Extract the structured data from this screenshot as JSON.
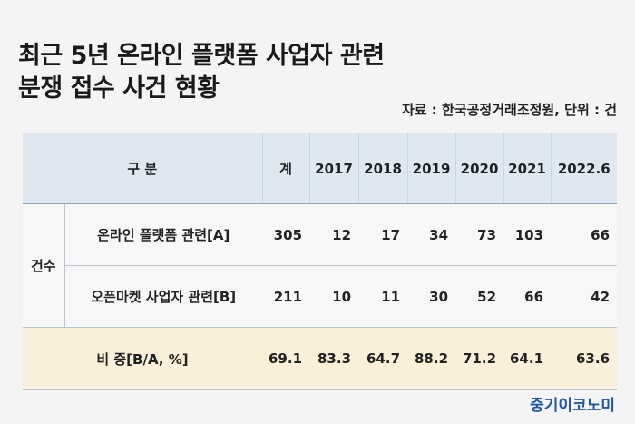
{
  "title_line1": "최근 5년 온라인 플랫폼 사업자 관련",
  "title_line2": "분쟁 접수 사건 현황",
  "source": "자료 : 한국공정거래조정원, 단위 : 건",
  "brand": "중기이코노미",
  "colors": {
    "header_bg": "#dfe8f1",
    "ratio_bg": "#faf0d9",
    "brand": "#1e56a8"
  },
  "chart_data": {
    "type": "table",
    "header": {
      "category": "구 분",
      "total": "계",
      "years": [
        "2017",
        "2018",
        "2019",
        "2020",
        "2021",
        "2022.6"
      ]
    },
    "group_label": "건수",
    "rows": [
      {
        "label": "온라인 플랫폼 관련[A]",
        "total": "305",
        "values": [
          "12",
          "17",
          "34",
          "73",
          "103",
          "66"
        ]
      },
      {
        "label": "오픈마켓 사업자 관련[B]",
        "total": "211",
        "values": [
          "10",
          "11",
          "30",
          "52",
          "66",
          "42"
        ]
      },
      {
        "label": "비 중[B/A, %]",
        "total": "69.1",
        "values": [
          "83.3",
          "64.7",
          "88.2",
          "71.2",
          "64.1",
          "63.6"
        ]
      }
    ]
  }
}
